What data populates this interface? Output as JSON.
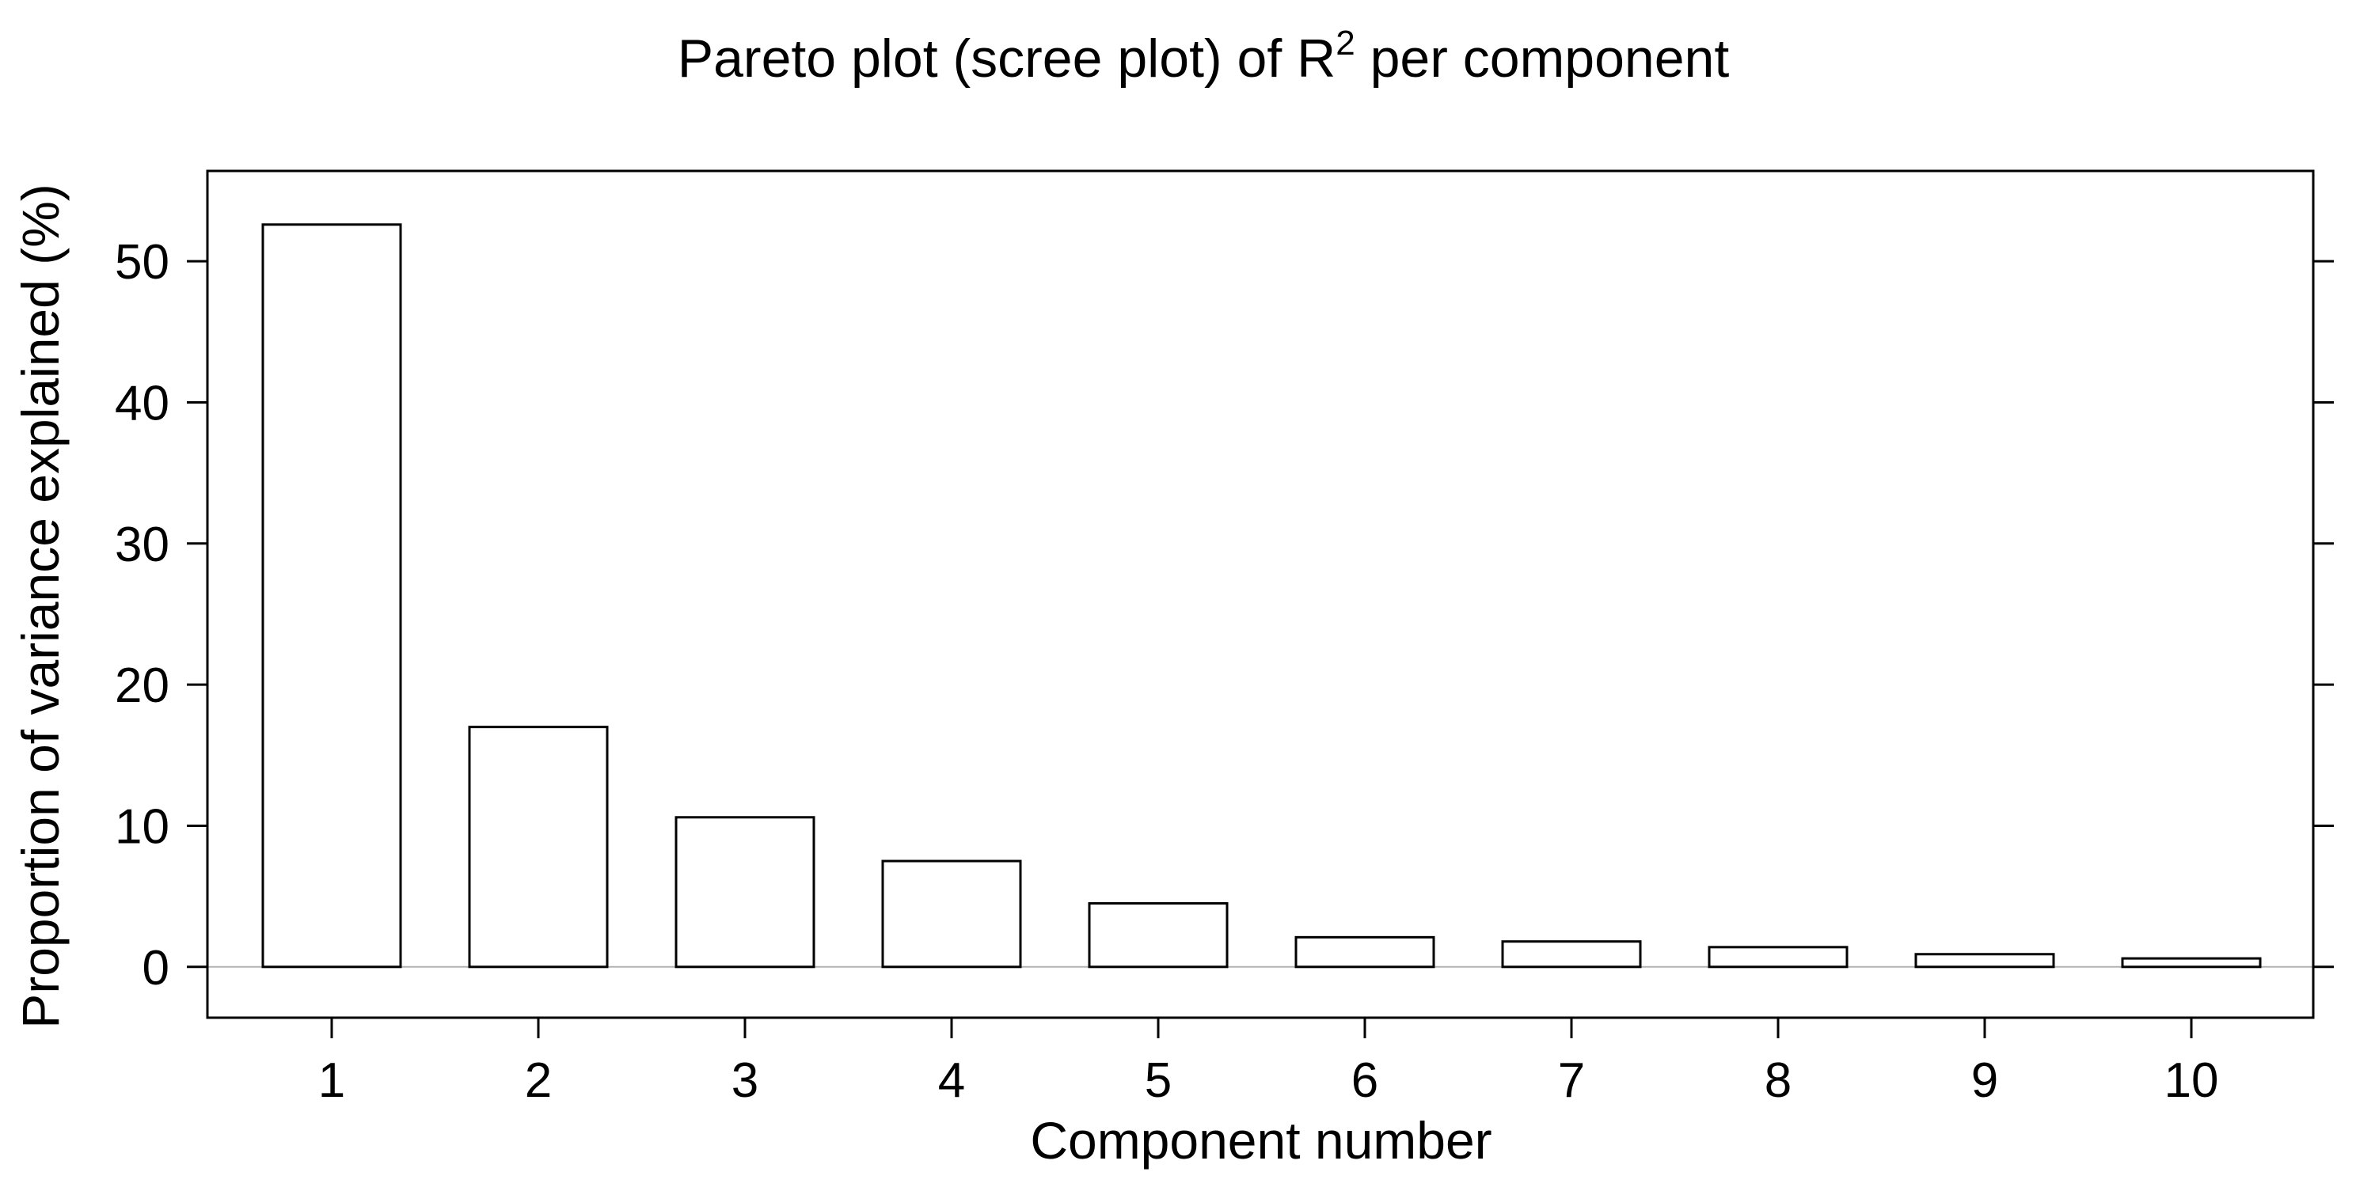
{
  "chart_data": {
    "type": "bar",
    "title": {
      "main": "Pareto plot (scree plot) of R",
      "superscript": "2",
      "suffix": " per component"
    },
    "xlabel": "Component number",
    "ylabel": "Proportion of variance explained (%)",
    "categories": [
      "1",
      "2",
      "3",
      "4",
      "5",
      "6",
      "7",
      "8",
      "9",
      "10"
    ],
    "values": [
      52.6,
      17.0,
      10.6,
      7.5,
      4.5,
      2.1,
      1.8,
      1.4,
      0.9,
      0.6
    ],
    "yticks": [
      0,
      10,
      20,
      30,
      40,
      50
    ],
    "ylim": [
      -3.6,
      56.4
    ],
    "grid": false,
    "zero_line": true,
    "colors": {
      "bar_fill": "#ffffff",
      "bar_stroke": "#000000",
      "zero_line": "#b3b3b3",
      "frame": "#000000"
    }
  }
}
